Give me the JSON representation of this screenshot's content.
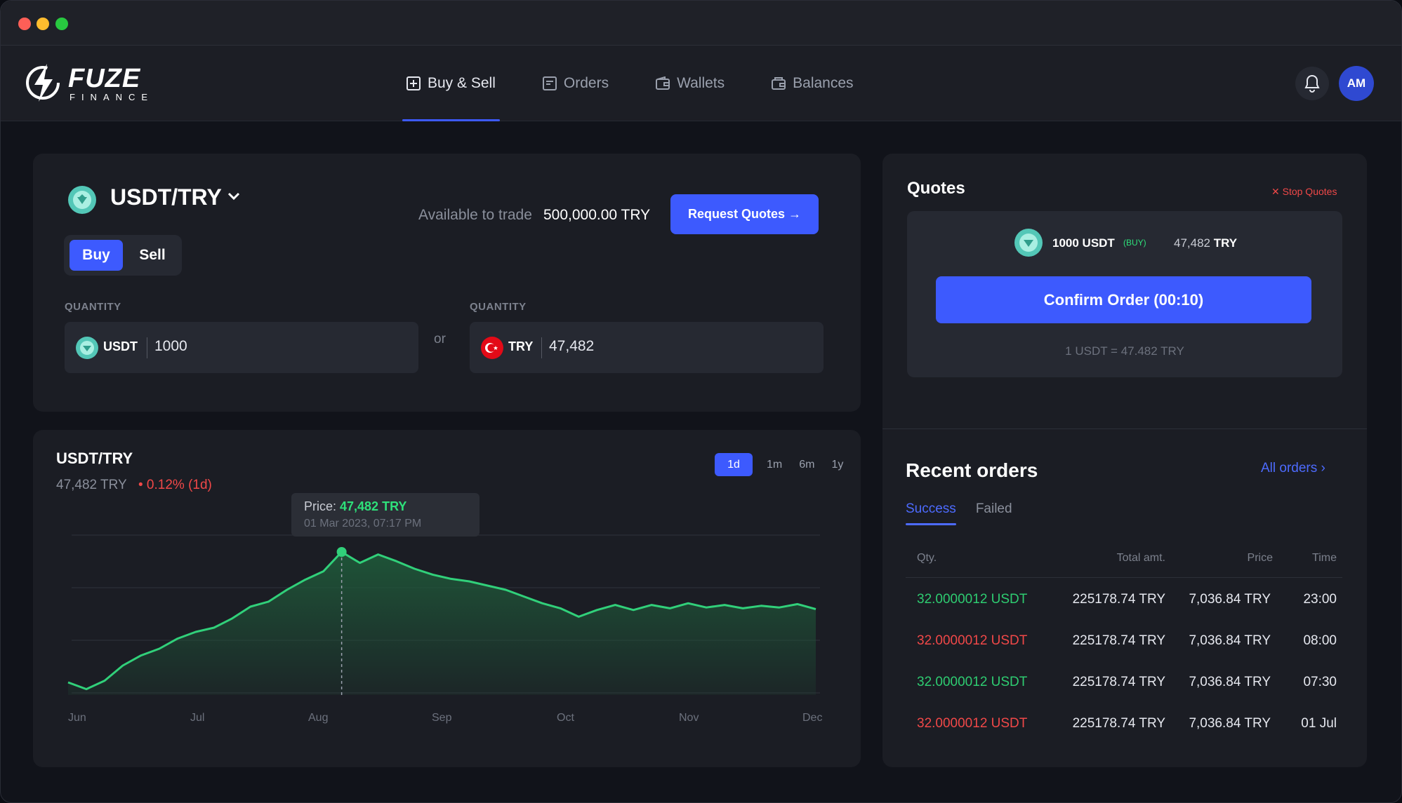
{
  "brand": {
    "name": "FUZE",
    "sub": "FINANCE"
  },
  "nav": {
    "tabs": [
      {
        "label": "Buy & Sell",
        "icon": "plus-square-icon",
        "active": true
      },
      {
        "label": "Orders",
        "icon": "orders-icon",
        "active": false
      },
      {
        "label": "Wallets",
        "icon": "wallet-icon",
        "active": false
      },
      {
        "label": "Balances",
        "icon": "balance-icon",
        "active": false
      }
    ],
    "avatar_initials": "AM"
  },
  "trade": {
    "pair": "USDT/TRY",
    "buy_label": "Buy",
    "sell_label": "Sell",
    "available_label": "Available to trade",
    "available_value": "500,000.00 TRY",
    "request_quotes_label": "Request Quotes →",
    "quantity_label_left": "QUANTITY",
    "quantity_label_right": "QUANTITY",
    "left_currency": "USDT",
    "left_value": "1000",
    "or_label": "or",
    "right_currency": "TRY",
    "right_value": "47,482"
  },
  "chart_panel": {
    "title": "USDT/TRY",
    "price": "47,482 TRY",
    "change": "• 0.12% (1d)",
    "ranges": [
      "1d",
      "1m",
      "6m",
      "1y"
    ],
    "active_range": "1d",
    "tooltip_prefix": "Price: ",
    "tooltip_value": "47,482 TRY",
    "tooltip_date": "01 Mar 2023, 07:17 PM"
  },
  "chart_data": {
    "type": "area",
    "x_labels": [
      "Jun",
      "Jul",
      "Aug",
      "Sep",
      "Oct",
      "Nov",
      "Dec"
    ],
    "values": [
      10,
      2,
      12,
      30,
      42,
      50,
      62,
      70,
      75,
      86,
      100,
      106,
      120,
      132,
      142,
      165,
      152,
      162,
      154,
      145,
      138,
      133,
      130,
      125,
      120,
      112,
      104,
      98,
      88,
      96,
      102,
      96,
      102,
      98,
      104,
      99,
      102,
      98,
      101,
      99,
      103,
      97
    ],
    "highlight_index": 15,
    "ylim": [
      -5,
      185
    ],
    "grid": true,
    "line_color": "#31d07a",
    "fill_color": "#1f5a3a"
  },
  "quotes": {
    "title": "Quotes",
    "stop_label": "✕ Stop Quotes",
    "amount": "1000 USDT",
    "side": "(BUY)",
    "try_amount": "47,482",
    "try_unit": "TRY",
    "confirm_label": "Confirm Order (00:10)",
    "rate": "1 USDT = 47.482 TRY"
  },
  "recent": {
    "title": "Recent orders",
    "all_label": "All orders  ›",
    "tabs": [
      "Success",
      "Failed"
    ],
    "headers": {
      "qty": "Qty.",
      "total": "Total amt.",
      "price": "Price",
      "time": "Time"
    },
    "rows": [
      {
        "qty": "32.0000012 USDT",
        "status": "green",
        "total": "225178.74 TRY",
        "price": "7,036.84 TRY",
        "time": "23:00"
      },
      {
        "qty": "32.0000012 USDT",
        "status": "red",
        "total": "225178.74 TRY",
        "price": "7,036.84 TRY",
        "time": "08:00"
      },
      {
        "qty": "32.0000012 USDT",
        "status": "green",
        "total": "225178.74 TRY",
        "price": "7,036.84 TRY",
        "time": "07:30"
      },
      {
        "qty": "32.0000012 USDT",
        "status": "red",
        "total": "225178.74 TRY",
        "price": "7,036.84 TRY",
        "time": "01 Jul"
      }
    ]
  },
  "colors": {
    "accent": "#3d5afe",
    "success": "#2ecc71",
    "danger": "#f04848"
  }
}
